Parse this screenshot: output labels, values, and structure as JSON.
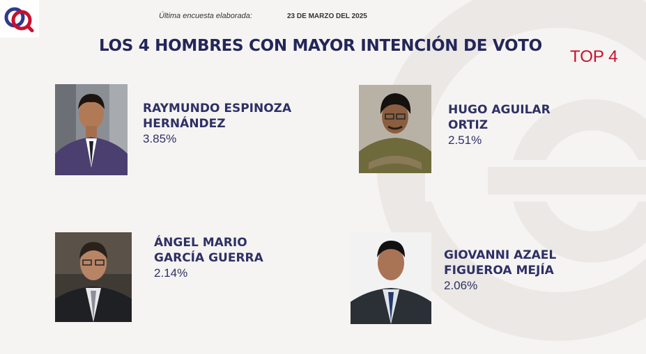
{
  "header": {
    "meta_label": "Última encuesta elaborada:",
    "meta_date": "23 DE MARZO DEL 2025",
    "title": "LOS 4 HOMBRES CON MAYOR INTENCIÓN DE VOTO",
    "badge": "TOP 4"
  },
  "colors": {
    "title": "#23265a",
    "badge": "#c8102e",
    "text": "#2e3066"
  },
  "candidates": [
    {
      "name_line1": "RAYMUNDO ESPINOZA",
      "name_line2": "HERNÁNDEZ",
      "percent": "3.85%",
      "percent_value": 3.85
    },
    {
      "name_line1": "HUGO AGUILAR",
      "name_line2": "ORTIZ",
      "percent": "2.51%",
      "percent_value": 2.51
    },
    {
      "name_line1": "ÁNGEL MARIO",
      "name_line2": "GARCÍA GUERRA",
      "percent": "2.14%",
      "percent_value": 2.14
    },
    {
      "name_line1": "GIOVANNI AZAEL",
      "name_line2": "FIGUEROA MEJÍA",
      "percent": "2.06%",
      "percent_value": 2.06
    }
  ]
}
